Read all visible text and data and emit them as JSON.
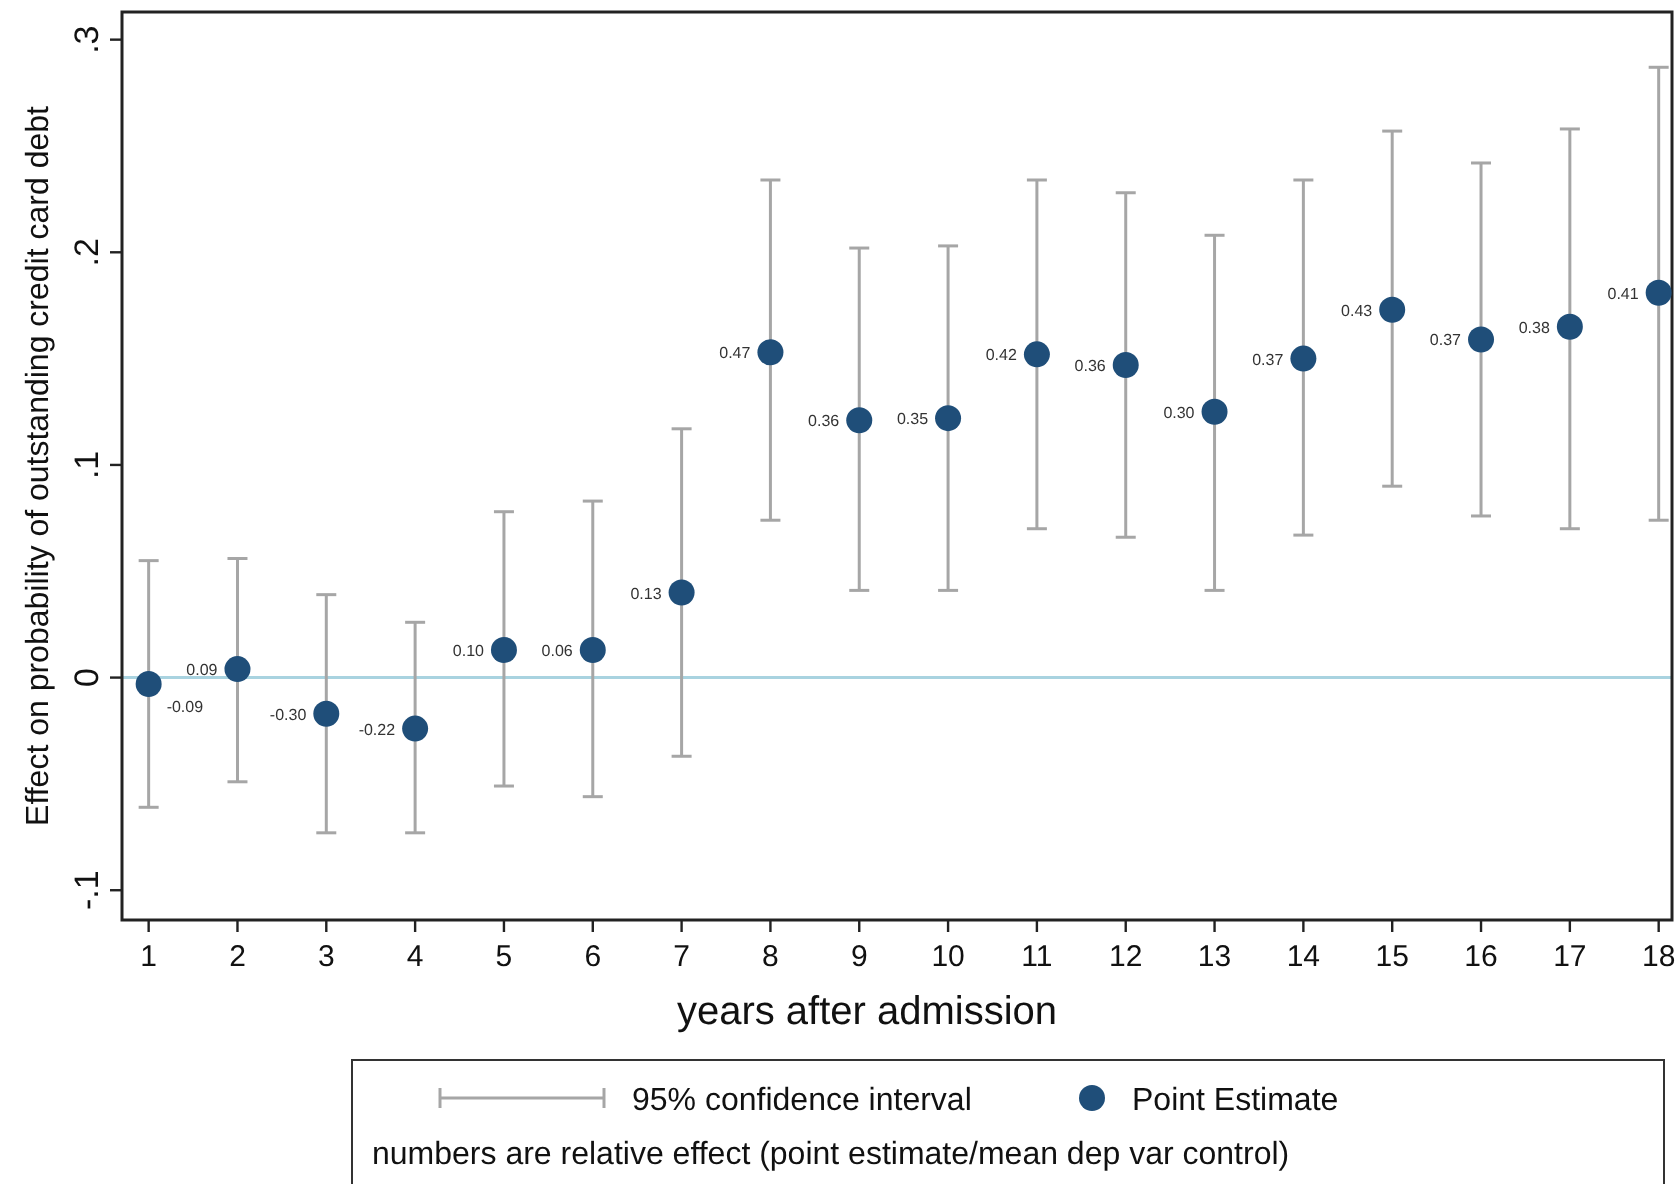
{
  "chart_data": {
    "type": "scatter",
    "xlabel": "years after admission",
    "ylabel": "Effect on probability of outstanding credit card debt",
    "x": [
      1,
      2,
      3,
      4,
      5,
      6,
      7,
      8,
      9,
      10,
      11,
      12,
      13,
      14,
      15,
      16,
      17,
      18
    ],
    "xlim": [
      0.7,
      18.15
    ],
    "xticks": [
      1,
      2,
      3,
      4,
      5,
      6,
      7,
      8,
      9,
      10,
      11,
      12,
      13,
      14,
      15,
      16,
      17,
      18
    ],
    "ylim": [
      -0.114,
      0.313
    ],
    "yticks": [
      {
        "value": -0.1,
        "label": "-.1"
      },
      0,
      {
        "value": 0.1,
        "label": ".1"
      },
      {
        "value": 0.2,
        "label": ".2"
      },
      {
        "value": 0.3,
        "label": ".3"
      }
    ],
    "series": [
      {
        "name": "Point Estimate",
        "color": "#1f4e79",
        "values": [
          -0.003,
          0.004,
          -0.017,
          -0.024,
          0.013,
          0.013,
          0.04,
          0.153,
          0.121,
          0.122,
          0.152,
          0.147,
          0.125,
          0.15,
          0.173,
          0.159,
          0.165,
          0.181
        ],
        "errors": [
          [
            -0.061,
            0.055
          ],
          [
            -0.049,
            0.056
          ],
          [
            -0.073,
            0.039
          ],
          [
            -0.073,
            0.026
          ],
          [
            -0.051,
            0.078
          ],
          [
            -0.056,
            0.083
          ],
          [
            -0.037,
            0.117
          ],
          [
            0.074,
            0.234
          ],
          [
            0.041,
            0.202
          ],
          [
            0.041,
            0.203
          ],
          [
            0.07,
            0.234
          ],
          [
            0.066,
            0.228
          ],
          [
            0.041,
            0.208
          ],
          [
            0.067,
            0.234
          ],
          [
            0.09,
            0.257
          ],
          [
            0.076,
            0.242
          ],
          [
            0.07,
            0.258
          ],
          [
            0.074,
            0.287
          ]
        ]
      }
    ],
    "marker": "circle",
    "ref_lines": [
      {
        "axis": "y",
        "value": 0,
        "color": "#a9d3e0"
      }
    ],
    "legend": "bottom",
    "annotations": [
      "95% confidence interval",
      "numbers are relative effect (point estimate/mean dep var control)",
      {
        "text": "-0.09",
        "x": 1,
        "y": -0.003
      },
      {
        "text": "0.09",
        "x": 2,
        "y": 0.004
      },
      {
        "text": "-0.30",
        "x": 3,
        "y": -0.017
      },
      {
        "text": "-0.22",
        "x": 4,
        "y": -0.024
      },
      {
        "text": "0.10",
        "x": 5,
        "y": 0.013
      },
      {
        "text": "0.06",
        "x": 6,
        "y": 0.013
      },
      {
        "text": "0.13",
        "x": 7,
        "y": 0.04
      },
      {
        "text": "0.47",
        "x": 8,
        "y": 0.153
      },
      {
        "text": "0.36",
        "x": 9,
        "y": 0.121
      },
      {
        "text": "0.35",
        "x": 10,
        "y": 0.122
      },
      {
        "text": "0.42",
        "x": 11,
        "y": 0.152
      },
      {
        "text": "0.36",
        "x": 12,
        "y": 0.147
      },
      {
        "text": "0.30",
        "x": 13,
        "y": 0.125
      },
      {
        "text": "0.37",
        "x": 14,
        "y": 0.15
      },
      {
        "text": "0.43",
        "x": 15,
        "y": 0.173
      },
      {
        "text": "0.37",
        "x": 16,
        "y": 0.159
      },
      {
        "text": "0.38",
        "x": 17,
        "y": 0.165
      },
      {
        "text": "0.41",
        "x": 18,
        "y": 0.181
      }
    ]
  }
}
